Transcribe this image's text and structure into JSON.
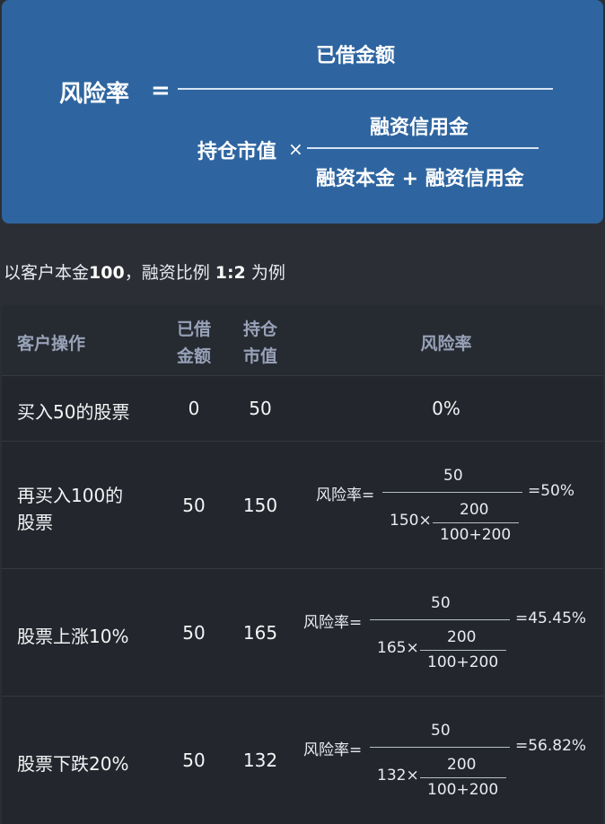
{
  "formula": {
    "lhs": "风险率",
    "equals": "=",
    "numerator": "已借金额",
    "denominator_prefix": "持仓市值",
    "times": "×",
    "inner_numerator": "融资信用金",
    "inner_denominator": "融资本金 + 融资信用金"
  },
  "subtitle": {
    "prefix": "以客户本金",
    "principal": "100",
    "middle": "，融资比例 ",
    "ratio": "1:2",
    "suffix": " 为例"
  },
  "table": {
    "headers": {
      "action": "客户操作",
      "borrowed_1": "已借",
      "borrowed_2": "金额",
      "position_1": "持仓",
      "position_2": "市值",
      "risk": "风险率"
    },
    "rows": [
      {
        "action": "买入50的股票",
        "borrowed": "0",
        "position": "50",
        "risk_value": "0%"
      },
      {
        "action_line1": "再买入100的",
        "action_line2": "股票",
        "borrowed": "50",
        "position": "150",
        "risk_label": "风险率=",
        "numerator": "50",
        "denom_prefix": "150×",
        "inner_num": "200",
        "inner_den": "100+200",
        "result": "=50%"
      },
      {
        "action": "股票上涨10%",
        "borrowed": "50",
        "position": "165",
        "risk_label": "风险率=",
        "numerator": "50",
        "denom_prefix": "165×",
        "inner_num": "200",
        "inner_den": "100+200",
        "result": "=45.45%"
      },
      {
        "action": "股票下跌20%",
        "borrowed": "50",
        "position": "132",
        "risk_label": "风险率=",
        "numerator": "50",
        "denom_prefix": "132×",
        "inner_num": "200",
        "inner_den": "100+200",
        "result": "=56.82%"
      }
    ]
  }
}
